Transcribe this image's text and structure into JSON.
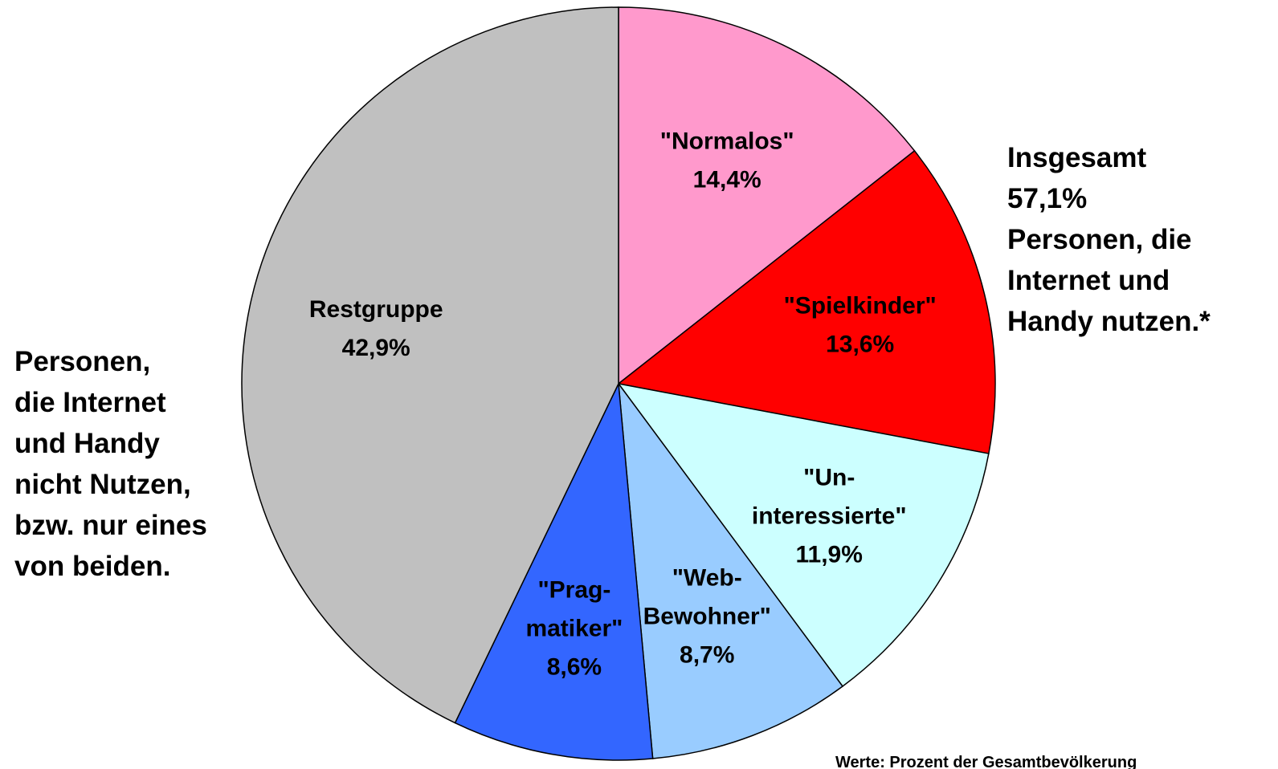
{
  "chart_data": {
    "type": "pie",
    "categories": [
      "\"Normalos\"",
      "\"Spielkinder\"",
      "\"Un-\ninteressierte\"",
      "\"Web-\nBewohner\"",
      "\"Prag-\nmatiker\"",
      "Restgruppe"
    ],
    "values": [
      14.4,
      13.6,
      11.9,
      8.7,
      8.6,
      42.9
    ],
    "value_labels": [
      "14,4%",
      "13,6%",
      "11,9%",
      "8,7%",
      "8,6%",
      "42,9%"
    ],
    "colors": [
      "#FF99CC",
      "#FF0000",
      "#CCFFFF",
      "#99CCFF",
      "#3366FF",
      "#C0C0C0"
    ],
    "annotations": [
      "Insgesamt\n57,1%\nPersonen, die\nInternet und\nHandy nutzen.*",
      "Personen,\ndie Internet\nund Handy\nnicht Nutzen,\nbzw. nur eines\nvon beiden.",
      "Werte: Prozent der Gesamtbevölkerung"
    ]
  }
}
